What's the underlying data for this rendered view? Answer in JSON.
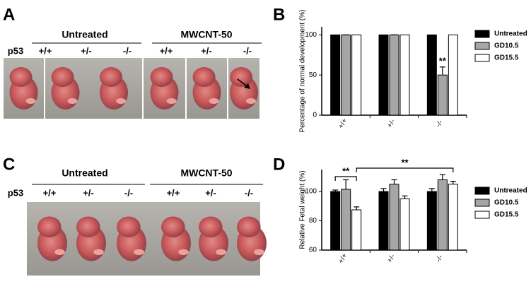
{
  "panel_labels": [
    "A",
    "B",
    "C",
    "D"
  ],
  "photo_panels": [
    {
      "groups": [
        "Untreated",
        "MWCNT-50"
      ],
      "row_label": "p53",
      "genotypes": [
        "+/+",
        "+/-",
        "-/-",
        "+/+",
        "+/-",
        "-/-"
      ]
    },
    {
      "groups": [
        "Untreated",
        "MWCNT-50"
      ],
      "row_label": "p53",
      "genotypes": [
        "+/+",
        "+/-",
        "-/-",
        "+/+",
        "+/-",
        "-/-"
      ]
    }
  ],
  "chart_data": [
    {
      "type": "bar",
      "y_label": "Percentage of normal development (%)",
      "categories": [
        "+/+",
        "+/-",
        "-/-"
      ],
      "series": [
        {
          "name": "Untreated",
          "color": "#000000",
          "values": [
            100,
            100,
            100
          ]
        },
        {
          "name": "GD10.5",
          "color": "#a6a6a6",
          "values": [
            100,
            100,
            50
          ],
          "errors": [
            0,
            0,
            10
          ]
        },
        {
          "name": "GD15.5",
          "color": "#ffffff",
          "values": [
            100,
            100,
            100
          ]
        }
      ],
      "ylim": [
        0,
        110
      ],
      "yticks": [
        0,
        50,
        100
      ],
      "annotations": [
        "**"
      ],
      "legend": "right"
    },
    {
      "type": "bar",
      "y_label": "Relative Fetal weight (%)",
      "categories": [
        "+/+",
        "+/-",
        "-/-"
      ],
      "series": [
        {
          "name": "Untreated",
          "color": "#000000",
          "values": [
            100,
            100,
            100
          ],
          "errors": [
            1,
            2,
            2
          ]
        },
        {
          "name": "GD10.5",
          "color": "#a6a6a6",
          "values": [
            101.5,
            105,
            108
          ],
          "errors": [
            6.5,
            3,
            3.5
          ]
        },
        {
          "name": "GD15.5",
          "color": "#ffffff",
          "values": [
            87.5,
            95,
            105
          ],
          "errors": [
            2,
            2,
            2
          ]
        }
      ],
      "ylim": [
        60,
        115
      ],
      "yticks": [
        60,
        80,
        100
      ],
      "annotations": [
        "**",
        "**"
      ],
      "legend": "right"
    }
  ]
}
